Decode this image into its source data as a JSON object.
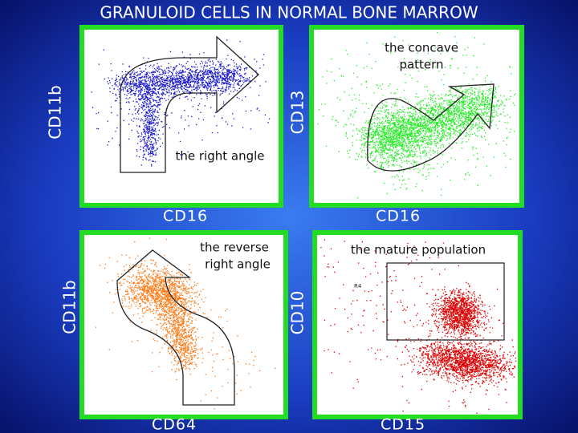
{
  "title": "GRANULOID CELLS IN NORMAL BONE MARROW",
  "panels": [
    {
      "y_label": "CD11b",
      "x_label": "CD16",
      "annotation": [
        "the right angle"
      ]
    },
    {
      "y_label": "CD13",
      "x_label": "CD16",
      "annotation": [
        "the concave",
        "pattern"
      ]
    },
    {
      "y_label": "CD11b",
      "x_label": "CD64",
      "annotation": [
        "the reverse",
        "right angle"
      ]
    },
    {
      "y_label": "CD10",
      "x_label": "CD15",
      "annotation": [
        "the mature population"
      ],
      "gate_label": "R4"
    }
  ]
}
